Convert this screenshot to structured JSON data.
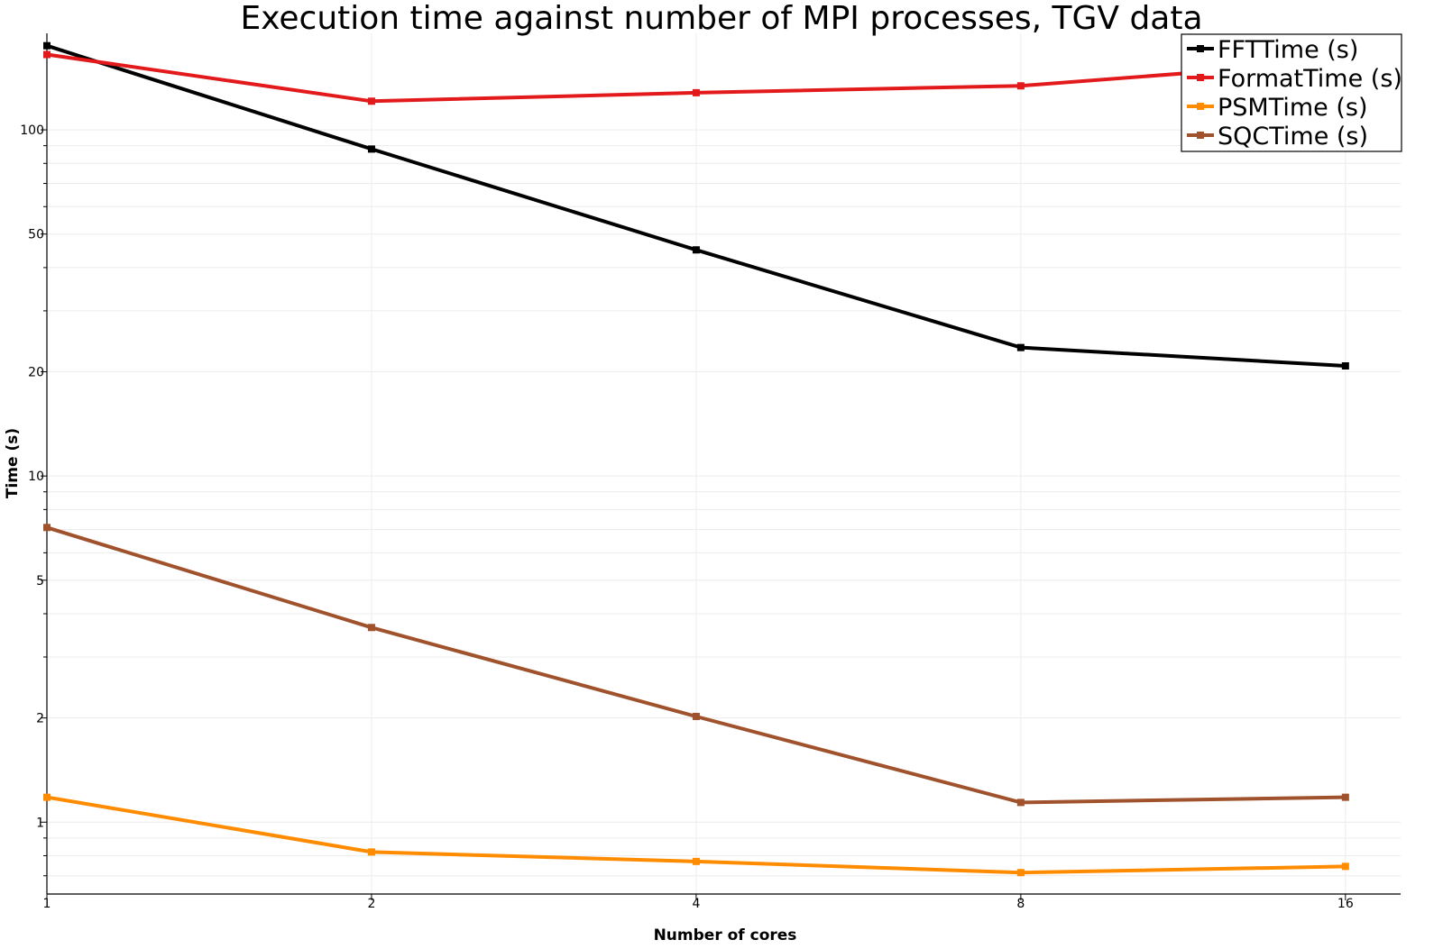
{
  "chart_data": {
    "type": "line",
    "title": "Execution time against number of MPI processes, TGV data",
    "xlabel": "Number of cores",
    "ylabel": "Time (s)",
    "x_scale": "log2",
    "y_scale": "log10",
    "x": [
      1,
      2,
      4,
      8,
      16
    ],
    "x_tick_labels": [
      "1",
      "2",
      "4",
      "8",
      "16"
    ],
    "xlim": [
      1,
      18
    ],
    "ylim": [
      0.62,
      190
    ],
    "y_ticks": [
      1,
      2,
      5,
      10,
      20,
      50,
      100
    ],
    "y_tick_labels": [
      "1",
      "2",
      "5",
      "10",
      "20",
      "50",
      "100"
    ],
    "grid": true,
    "legend_position": "top-right",
    "series": [
      {
        "name": "FFTTime (s)",
        "color": "#000000",
        "values": [
          175,
          88,
          45,
          23.5,
          20.8
        ]
      },
      {
        "name": "FormatTime (s)",
        "color": "#e31a1c",
        "values": [
          165,
          121,
          128,
          134,
          158
        ]
      },
      {
        "name": "PSMTime (s)",
        "color": "#ff8c00",
        "values": [
          1.18,
          0.82,
          0.77,
          0.715,
          0.745
        ]
      },
      {
        "name": "SQCTime (s)",
        "color": "#a0522d",
        "values": [
          7.1,
          3.65,
          2.02,
          1.14,
          1.18
        ]
      }
    ]
  }
}
